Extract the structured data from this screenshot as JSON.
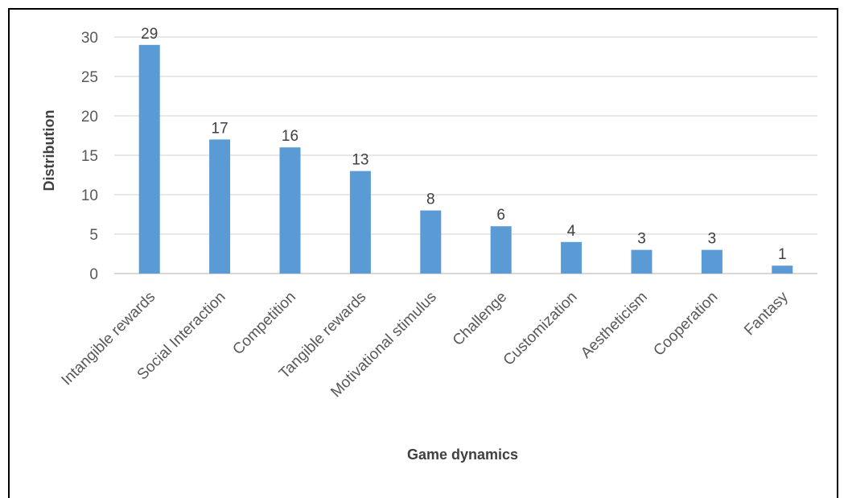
{
  "chart_data": {
    "type": "bar",
    "title": "",
    "xlabel": "Game dynamics",
    "ylabel": "Distribution",
    "categories": [
      "Intangible rewards",
      "Social Interaction",
      "Competition",
      "Tangible rewards",
      "Motivational stimulus",
      "Challenge",
      "Customization",
      "Aestheticism",
      "Cooperation",
      "Fantasy"
    ],
    "values": [
      29,
      17,
      16,
      13,
      8,
      6,
      4,
      3,
      3,
      1
    ],
    "ylim": [
      0,
      30
    ],
    "yticks": [
      0,
      5,
      10,
      15,
      20,
      25,
      30
    ],
    "grid": true,
    "legend": "none",
    "bar_color": "#5B9BD5",
    "grid_color": "#D9D9D9",
    "axis_color": "#BFBFBF"
  }
}
